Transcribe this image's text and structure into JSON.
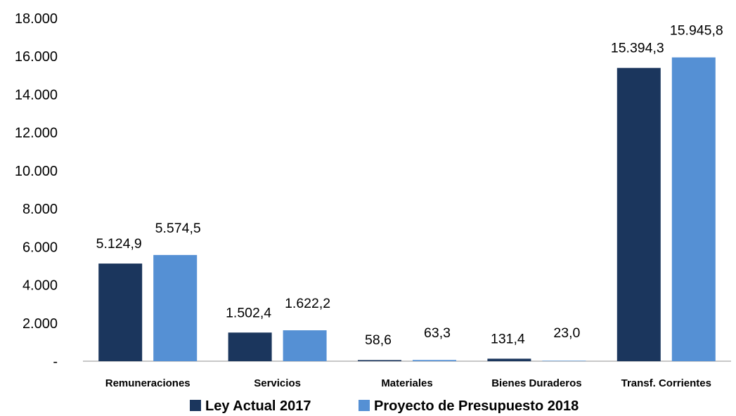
{
  "chart_data": {
    "type": "bar",
    "categories": [
      "Remuneraciones",
      "Servicios",
      "Materiales",
      "Bienes Duraderos",
      "Transf. Corrientes"
    ],
    "series": [
      {
        "name": "Ley Actual 2017",
        "color": "#1b365d",
        "values": [
          5124.9,
          1502.4,
          58.6,
          131.4,
          15394.3
        ],
        "labels": [
          "5.124,9",
          "1.502,4",
          "58,6",
          "131,4",
          "15.394,3"
        ]
      },
      {
        "name": "Proyecto de Presupuesto 2018",
        "color": "#5590d4",
        "values": [
          5574.5,
          1622.2,
          63.3,
          23.0,
          15945.8
        ],
        "labels": [
          "5.574,5",
          "1.622,2",
          "63,3",
          "23,0",
          "15.945,8"
        ]
      }
    ],
    "ylim": [
      0,
      18000
    ],
    "yticks": [
      0,
      2000,
      4000,
      6000,
      8000,
      10000,
      12000,
      14000,
      16000,
      18000
    ],
    "ytick_labels": [
      "-",
      "2.000",
      "4.000",
      "6.000",
      "8.000",
      "10.000",
      "12.000",
      "14.000",
      "16.000",
      "18.000"
    ],
    "grid": false,
    "legend_position": "bottom"
  }
}
